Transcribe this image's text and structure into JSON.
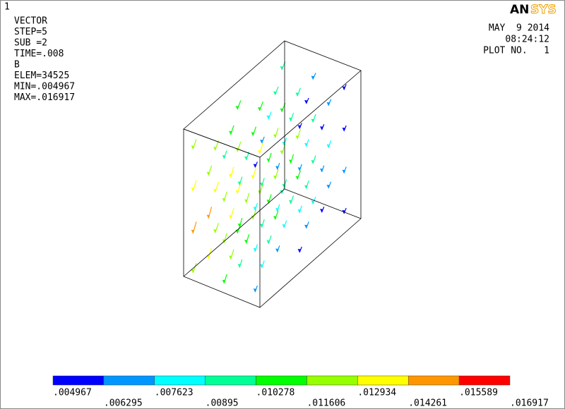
{
  "window_number": "1",
  "info": {
    "lines": [
      "VECTOR",
      "STEP=5",
      "SUB =2",
      "TIME=.008",
      "B",
      "ELEM=34525",
      "MIN=.004967",
      "MAX=.016917"
    ]
  },
  "logo": {
    "part1": "AN",
    "part2": "SYS"
  },
  "date": "MAY  9 2014",
  "time": "08:24:12",
  "plot_no": "PLOT NO.   1",
  "legend": {
    "colors": [
      "#0000ff",
      "#0096ff",
      "#00ffff",
      "#00ff96",
      "#00ff00",
      "#96ff00",
      "#ffff00",
      "#ff9600",
      "#ff0000"
    ],
    "labels": [
      ".004967",
      ".006295",
      ".007623",
      ".00895",
      ".010278",
      ".011606",
      ".012934",
      ".014261",
      ".015589",
      ".016917"
    ]
  }
}
